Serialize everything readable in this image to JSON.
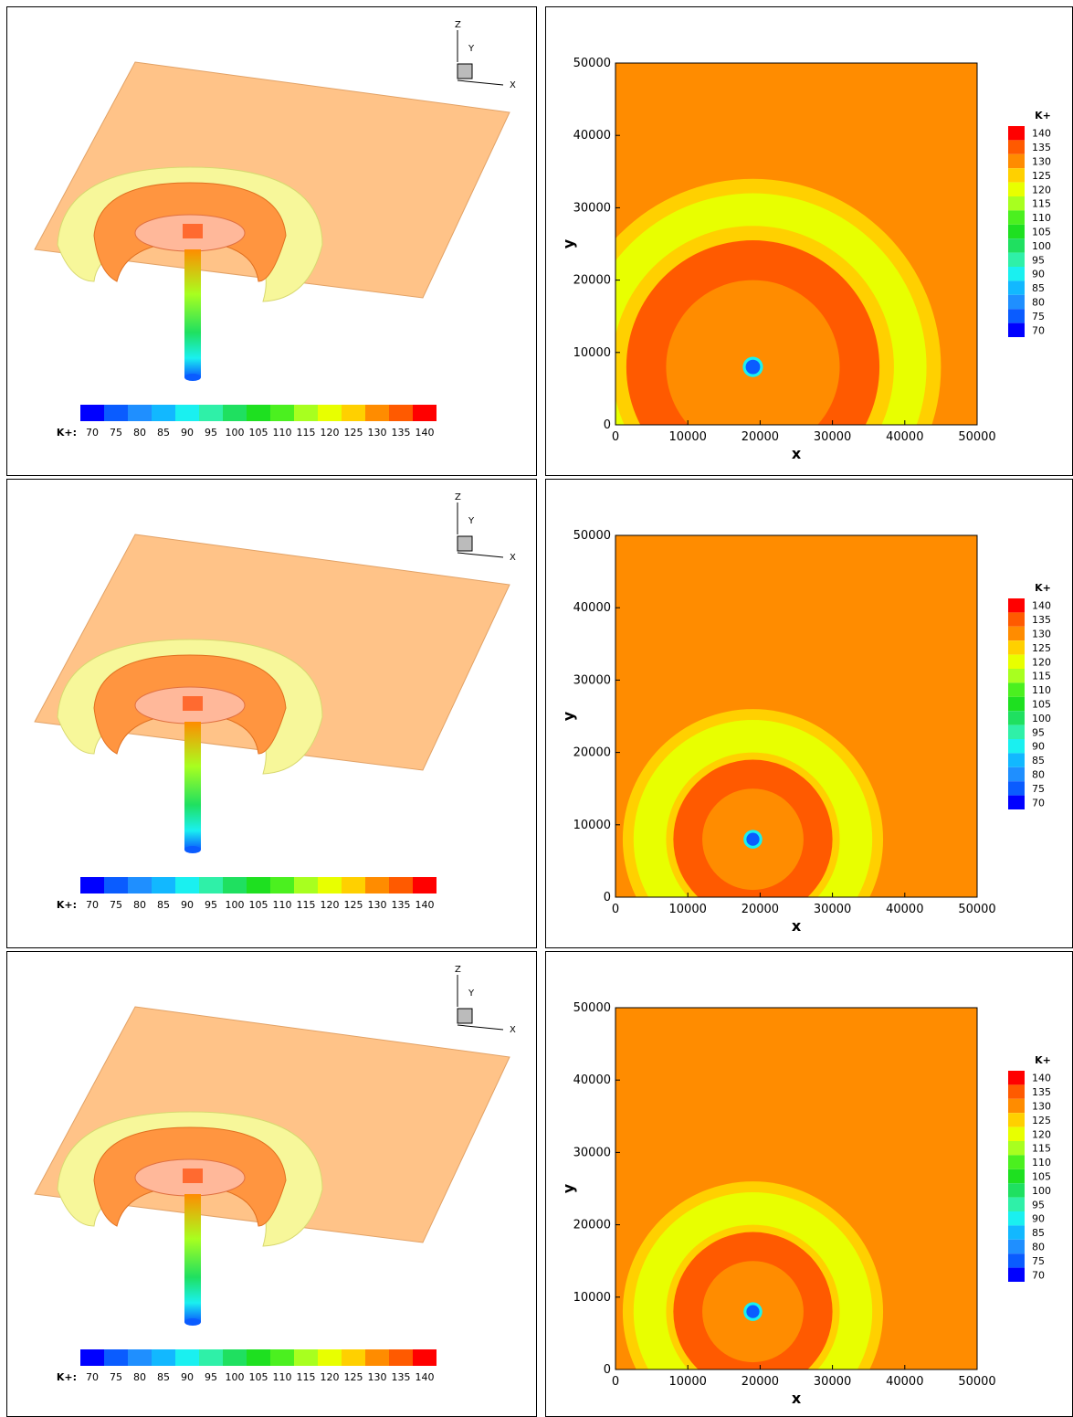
{
  "colorbar": {
    "title": "K+",
    "h_title": "K+:",
    "levels": [
      "70",
      "75",
      "80",
      "85",
      "90",
      "95",
      "100",
      "105",
      "110",
      "115",
      "120",
      "125",
      "130",
      "135",
      "140"
    ],
    "colors": [
      "#0000ff",
      "#0a5cff",
      "#1f8fff",
      "#12b8ff",
      "#1af0f0",
      "#2ff0a8",
      "#1fe060",
      "#1ee020",
      "#4bf01f",
      "#a8ff1f",
      "#e8ff00",
      "#ffd000",
      "#ff8c00",
      "#ff5a00",
      "#ff0000"
    ]
  },
  "triad": {
    "z": "Z",
    "y": "Y",
    "x": "X"
  },
  "chart_data": [
    {
      "type": "contour",
      "panel": "row1-left-3d",
      "view": "3D isometric surface plot",
      "legend": "bottom horizontal",
      "colorbar_title": "K+:",
      "colorbar_levels": [
        70,
        75,
        80,
        85,
        90,
        95,
        100,
        105,
        110,
        115,
        120,
        125,
        130,
        135,
        140
      ]
    },
    {
      "type": "contour",
      "panel": "row1-right-2d",
      "xlabel": "x",
      "ylabel": "y",
      "xlim": [
        0,
        50000
      ],
      "ylim": [
        0,
        50000
      ],
      "xticks": [
        0,
        10000,
        20000,
        30000,
        40000,
        50000
      ],
      "yticks": [
        0,
        10000,
        20000,
        30000,
        40000,
        50000
      ],
      "legend": "right vertical",
      "colorbar_title": "K+",
      "colorbar_levels": [
        70,
        75,
        80,
        85,
        90,
        95,
        100,
        105,
        110,
        115,
        120,
        125,
        130,
        135,
        140
      ],
      "background_level": 130,
      "source_center": [
        19000,
        8000
      ],
      "rings": [
        {
          "radius": 26000,
          "level": 125
        },
        {
          "radius": 24000,
          "level": 120
        },
        {
          "radius": 19500,
          "level": 125
        },
        {
          "radius": 17500,
          "level": 135
        },
        {
          "radius": 12000,
          "level": 130
        },
        {
          "radius": 1400,
          "level": 90
        },
        {
          "radius": 1000,
          "level": 75
        }
      ]
    },
    {
      "type": "contour",
      "panel": "row2-left-3d",
      "view": "3D isometric surface plot",
      "legend": "bottom horizontal",
      "colorbar_title": "K+:",
      "colorbar_levels": [
        70,
        75,
        80,
        85,
        90,
        95,
        100,
        105,
        110,
        115,
        120,
        125,
        130,
        135,
        140
      ]
    },
    {
      "type": "contour",
      "panel": "row2-right-2d",
      "xlabel": "x",
      "ylabel": "y",
      "xlim": [
        0,
        50000
      ],
      "ylim": [
        0,
        50000
      ],
      "xticks": [
        0,
        10000,
        20000,
        30000,
        40000,
        50000
      ],
      "yticks": [
        0,
        10000,
        20000,
        30000,
        40000,
        50000
      ],
      "legend": "right vertical",
      "colorbar_title": "K+",
      "colorbar_levels": [
        70,
        75,
        80,
        85,
        90,
        95,
        100,
        105,
        110,
        115,
        120,
        125,
        130,
        135,
        140
      ],
      "background_level": 130,
      "source_center": [
        19000,
        8000
      ],
      "rings": [
        {
          "radius": 18000,
          "level": 125
        },
        {
          "radius": 16500,
          "level": 120
        },
        {
          "radius": 12000,
          "level": 125
        },
        {
          "radius": 11000,
          "level": 135
        },
        {
          "radius": 7000,
          "level": 130
        },
        {
          "radius": 1300,
          "level": 90
        },
        {
          "radius": 900,
          "level": 75
        }
      ]
    },
    {
      "type": "contour",
      "panel": "row3-left-3d",
      "view": "3D isometric surface plot",
      "legend": "bottom horizontal",
      "colorbar_title": "K+:",
      "colorbar_levels": [
        70,
        75,
        80,
        85,
        90,
        95,
        100,
        105,
        110,
        115,
        120,
        125,
        130,
        135,
        140
      ]
    },
    {
      "type": "contour",
      "panel": "row3-right-2d",
      "xlabel": "x",
      "ylabel": "y",
      "xlim": [
        0,
        50000
      ],
      "ylim": [
        0,
        50000
      ],
      "xticks": [
        0,
        10000,
        20000,
        30000,
        40000,
        50000
      ],
      "yticks": [
        0,
        10000,
        20000,
        30000,
        40000,
        50000
      ],
      "legend": "right vertical",
      "colorbar_title": "K+",
      "colorbar_levels": [
        70,
        75,
        80,
        85,
        90,
        95,
        100,
        105,
        110,
        115,
        120,
        125,
        130,
        135,
        140
      ],
      "background_level": 130,
      "source_center": [
        19000,
        8000
      ],
      "rings": [
        {
          "radius": 18000,
          "level": 125
        },
        {
          "radius": 16500,
          "level": 120
        },
        {
          "radius": 12000,
          "level": 125
        },
        {
          "radius": 11000,
          "level": 135
        },
        {
          "radius": 7000,
          "level": 130
        },
        {
          "radius": 1300,
          "level": 90
        },
        {
          "radius": 900,
          "level": 75
        }
      ]
    }
  ]
}
